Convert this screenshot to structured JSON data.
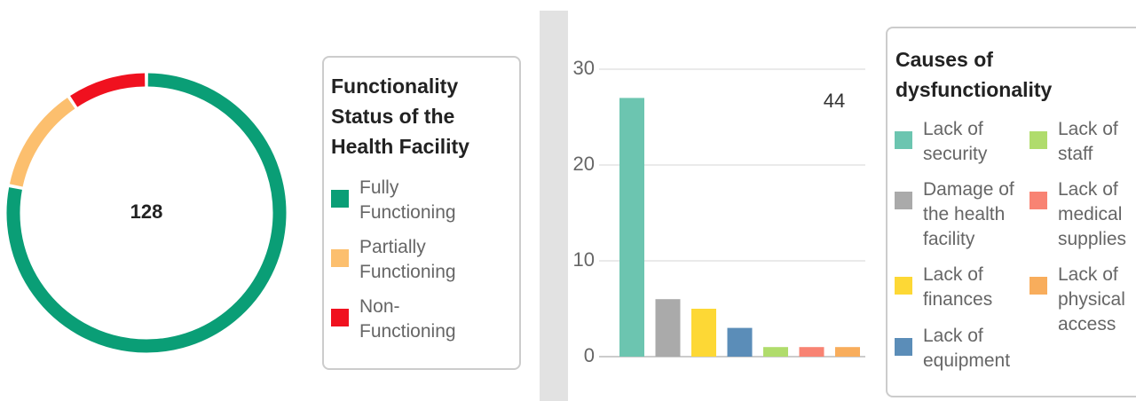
{
  "chart_data": [
    {
      "type": "donut",
      "title": "Functionality Status of the Health Facility",
      "total": 128,
      "categories": [
        "Fully Functioning",
        "Partially Functioning",
        "Non-Functioning"
      ],
      "values": [
        100,
        16,
        12
      ],
      "colors": [
        "#0a9e76",
        "#fcbf6e",
        "#f0111f"
      ]
    },
    {
      "type": "bar",
      "title": "Causes of dysfunctionality",
      "total": 44,
      "categories": [
        "Lack of security",
        "Damage of the health facility",
        "Lack of finances",
        "Lack of equipment",
        "Lack of staff",
        "Lack of medical supplies",
        "Lack of physical access"
      ],
      "values": [
        27,
        6,
        5,
        3,
        1,
        1,
        1
      ],
      "colors": [
        "#6cc5b0",
        "#aaaaaa",
        "#fdd835",
        "#5b8db8",
        "#b0dc6c",
        "#f88373",
        "#f8ad5c"
      ],
      "ylim": [
        0,
        30
      ],
      "yticks": [
        0,
        10,
        20,
        30
      ],
      "grid": true
    }
  ]
}
